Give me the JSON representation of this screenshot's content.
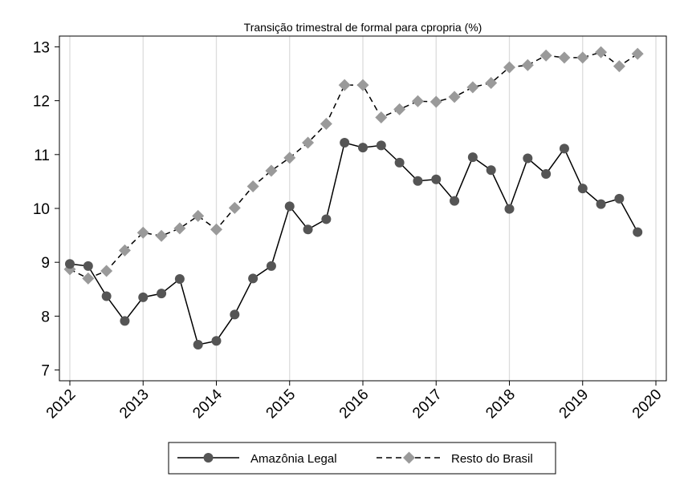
{
  "chart_data": {
    "type": "line",
    "title": "Transição trimestral de formal para cpropria (%)",
    "xlabel": "",
    "ylabel": "",
    "xlim": [
      2012,
      2020
    ],
    "ylim": [
      6.8,
      13.2
    ],
    "x_ticks": [
      2012,
      2013,
      2014,
      2015,
      2016,
      2017,
      2018,
      2019,
      2020
    ],
    "x_tick_labels": [
      "2012",
      "2013",
      "2014",
      "2015",
      "2016",
      "2017",
      "2018",
      "2019",
      "2020"
    ],
    "y_ticks": [
      7,
      8,
      9,
      10,
      11,
      12,
      13
    ],
    "y_tick_labels": [
      "7",
      "8",
      "9",
      "10",
      "11",
      "12",
      "13"
    ],
    "grid": "vertical",
    "legend_position": "bottom",
    "x": [
      2012.0,
      2012.25,
      2012.5,
      2012.75,
      2013.0,
      2013.25,
      2013.5,
      2013.75,
      2014.0,
      2014.25,
      2014.5,
      2014.75,
      2015.0,
      2015.25,
      2015.5,
      2015.75,
      2016.0,
      2016.25,
      2016.5,
      2016.75,
      2017.0,
      2017.25,
      2017.5,
      2017.75,
      2018.0,
      2018.25,
      2018.5,
      2018.75,
      2019.0,
      2019.25,
      2019.5,
      2019.75
    ],
    "series": [
      {
        "name": "Amazônia Legal",
        "marker": "circle",
        "line": "solid",
        "color": "#555555",
        "values": [
          8.97,
          8.93,
          8.37,
          7.91,
          8.35,
          8.42,
          8.69,
          7.47,
          7.54,
          8.03,
          8.7,
          8.93,
          10.04,
          9.61,
          9.8,
          11.22,
          11.13,
          11.17,
          10.85,
          10.51,
          10.54,
          10.14,
          10.95,
          10.71,
          9.99,
          10.93,
          10.64,
          11.11,
          10.37,
          10.08,
          10.18,
          9.56
        ]
      },
      {
        "name": "Resto do Brasil",
        "marker": "diamond",
        "line": "dashed",
        "color": "#9a9a9a",
        "values": [
          8.87,
          8.7,
          8.84,
          9.22,
          9.55,
          9.49,
          9.63,
          9.86,
          9.61,
          10.01,
          10.41,
          10.7,
          10.94,
          11.22,
          11.57,
          12.29,
          12.29,
          11.69,
          11.84,
          11.99,
          11.98,
          12.07,
          12.25,
          12.33,
          12.62,
          12.66,
          12.84,
          12.8,
          12.8,
          12.9,
          12.64,
          12.87
        ]
      }
    ]
  }
}
